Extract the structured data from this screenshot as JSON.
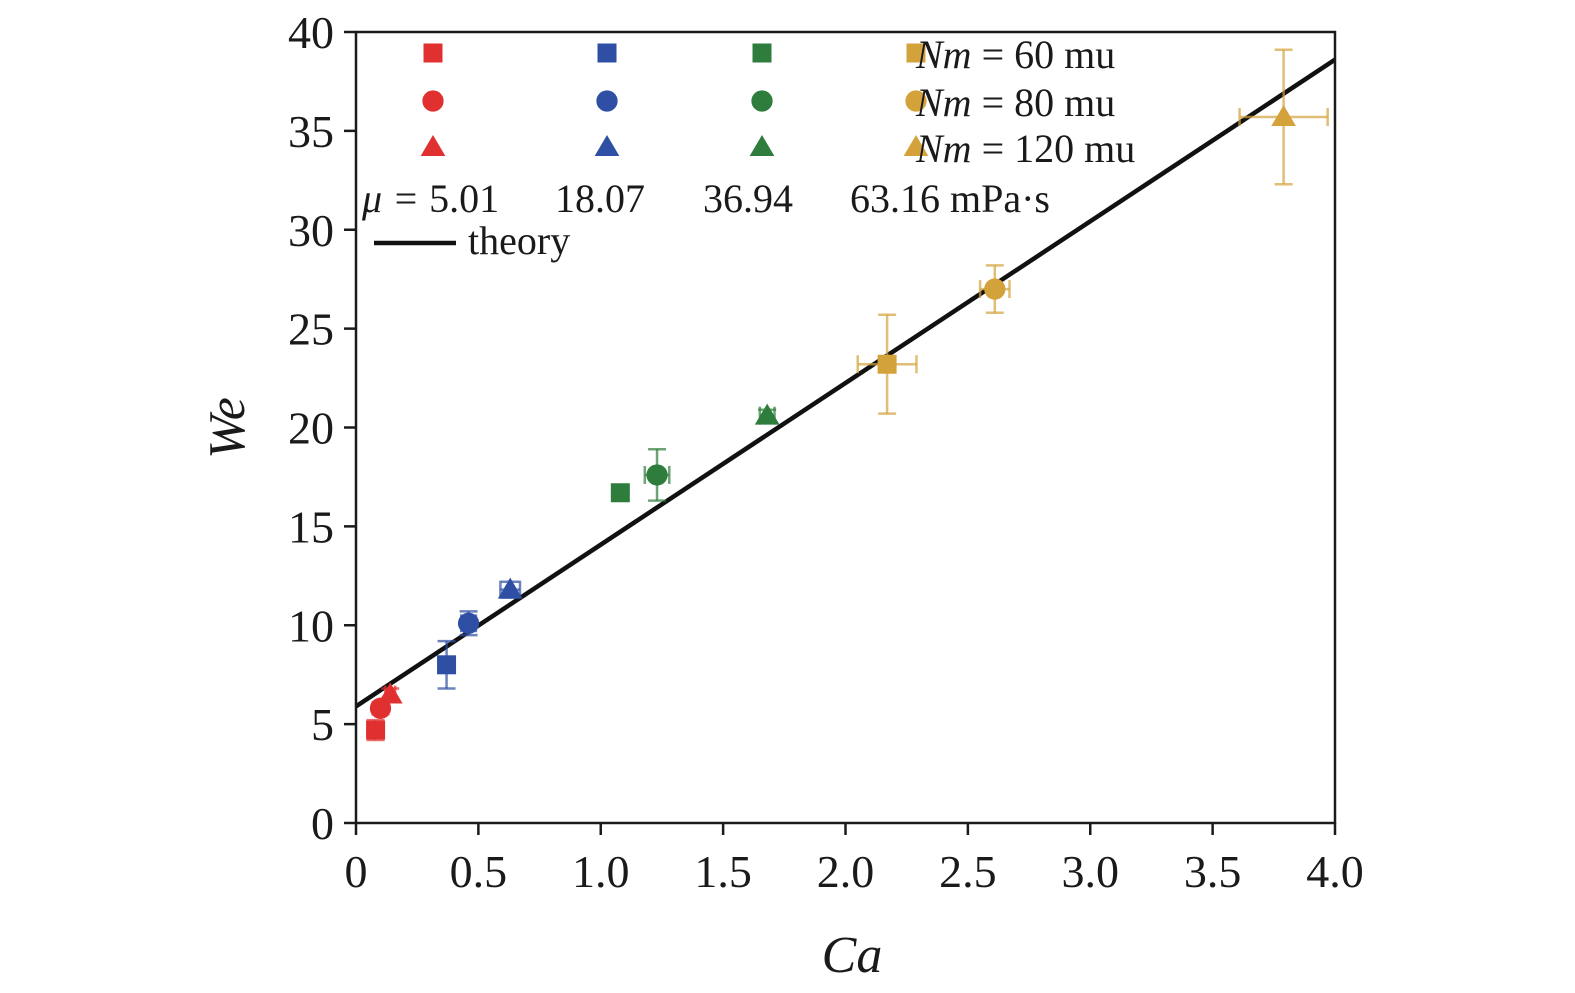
{
  "chart_data": {
    "type": "scatter",
    "title": "",
    "xlabel": "Ca",
    "ylabel": "We",
    "xlim": [
      0,
      4.0
    ],
    "ylim": [
      0,
      40
    ],
    "x_ticks": [
      "0",
      "0.5",
      "1.0",
      "1.5",
      "2.0",
      "2.5",
      "3.0",
      "3.5",
      "4.0"
    ],
    "y_ticks": [
      "0",
      "5",
      "10",
      "15",
      "20",
      "25",
      "30",
      "35",
      "40"
    ],
    "grid": false,
    "legend_position": "top-left",
    "colors": {
      "5.01": "#e03030",
      "18.07": "#2e4fa3",
      "36.94": "#2f7d3c",
      "63.16": "#d4a23a",
      "theory": "#111111"
    },
    "legend": {
      "viscosity_prefix": "μ =",
      "viscosity_values": [
        "5.01",
        "18.07",
        "36.94",
        "63.16"
      ],
      "viscosity_unit": "mPa·s",
      "nm_symbol": "Nm",
      "nm_entries": [
        "= 60 mu",
        "= 80 mu",
        "= 120 mu"
      ],
      "theory_label": "theory"
    },
    "series": [
      {
        "viscosity": "5.01",
        "nm": "60",
        "marker": "square",
        "x": 0.08,
        "y": 4.7,
        "xerr": 0.02,
        "yerr": 0.5
      },
      {
        "viscosity": "5.01",
        "nm": "80",
        "marker": "circle",
        "x": 0.1,
        "y": 5.8,
        "xerr": 0.02,
        "yerr": 0.3
      },
      {
        "viscosity": "5.01",
        "nm": "120",
        "marker": "triangle",
        "x": 0.14,
        "y": 6.5,
        "xerr": 0.02,
        "yerr": 0.3
      },
      {
        "viscosity": "18.07",
        "nm": "60",
        "marker": "square",
        "x": 0.37,
        "y": 8.0,
        "xerr": 0.02,
        "yerr": 1.2
      },
      {
        "viscosity": "18.07",
        "nm": "80",
        "marker": "circle",
        "x": 0.46,
        "y": 10.1,
        "xerr": 0.03,
        "yerr": 0.6
      },
      {
        "viscosity": "18.07",
        "nm": "120",
        "marker": "triangle",
        "x": 0.63,
        "y": 11.8,
        "xerr": 0.04,
        "yerr": 0.4
      },
      {
        "viscosity": "36.94",
        "nm": "60",
        "marker": "square",
        "x": 1.08,
        "y": 16.7,
        "xerr": 0.02,
        "yerr": 0.2
      },
      {
        "viscosity": "36.94",
        "nm": "80",
        "marker": "circle",
        "x": 1.23,
        "y": 17.6,
        "xerr": 0.05,
        "yerr": 1.3
      },
      {
        "viscosity": "36.94",
        "nm": "120",
        "marker": "triangle",
        "x": 1.68,
        "y": 20.6,
        "xerr": 0.03,
        "yerr": 0.3
      },
      {
        "viscosity": "63.16",
        "nm": "60",
        "marker": "square",
        "x": 2.17,
        "y": 23.2,
        "xerr": 0.12,
        "yerr": 2.5
      },
      {
        "viscosity": "63.16",
        "nm": "80",
        "marker": "circle",
        "x": 2.61,
        "y": 27.0,
        "xerr": 0.06,
        "yerr": 1.2
      },
      {
        "viscosity": "63.16",
        "nm": "120",
        "marker": "triangle",
        "x": 3.79,
        "y": 35.7,
        "xerr": 0.18,
        "yerr": 3.4
      }
    ],
    "theory_line": {
      "x": [
        0,
        4.0
      ],
      "y": [
        5.9,
        38.6
      ]
    }
  }
}
